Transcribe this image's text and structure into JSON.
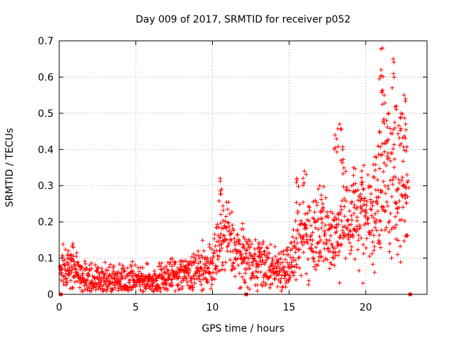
{
  "chart_data": {
    "type": "scatter",
    "title": "Day 009 of 2017, SRMTID for receiver p052",
    "xlabel": "GPS time / hours",
    "ylabel": "SRMTID / TECUs",
    "xlim": [
      0,
      24
    ],
    "ylim": [
      0,
      0.7
    ],
    "xticks": [
      0,
      5,
      10,
      15,
      20
    ],
    "xtick_labels": [
      "0",
      "5",
      "10",
      "15",
      "20"
    ],
    "yticks": [
      0,
      0.1,
      0.2,
      0.3,
      0.4,
      0.5,
      0.6,
      0.7
    ],
    "ytick_labels": [
      "0",
      "0.1",
      "0.2",
      "0.3",
      "0.4",
      "0.5",
      "0.6",
      "0.7"
    ],
    "grid": true,
    "marker": "plus",
    "series_color": "#ff0000",
    "trend": [
      [
        0.0,
        0.07
      ],
      [
        0.5,
        0.08
      ],
      [
        1.0,
        0.07
      ],
      [
        1.5,
        0.05
      ],
      [
        2.0,
        0.045
      ],
      [
        3.0,
        0.04
      ],
      [
        4.0,
        0.045
      ],
      [
        5.0,
        0.045
      ],
      [
        5.5,
        0.04
      ],
      [
        6.0,
        0.035
      ],
      [
        7.0,
        0.05
      ],
      [
        8.0,
        0.06
      ],
      [
        9.0,
        0.065
      ],
      [
        10.0,
        0.08
      ],
      [
        10.5,
        0.14
      ],
      [
        11.0,
        0.16
      ],
      [
        11.5,
        0.12
      ],
      [
        12.0,
        0.1
      ],
      [
        13.0,
        0.09
      ],
      [
        14.0,
        0.07
      ],
      [
        15.0,
        0.08
      ],
      [
        15.5,
        0.12
      ],
      [
        16.0,
        0.17
      ],
      [
        17.0,
        0.18
      ],
      [
        17.5,
        0.17
      ],
      [
        18.0,
        0.15
      ],
      [
        18.5,
        0.22
      ],
      [
        19.0,
        0.2
      ],
      [
        19.5,
        0.22
      ],
      [
        20.0,
        0.23
      ],
      [
        20.5,
        0.2
      ],
      [
        21.0,
        0.3
      ],
      [
        21.5,
        0.3
      ],
      [
        22.0,
        0.28
      ],
      [
        22.5,
        0.3
      ],
      [
        22.7,
        0.25
      ]
    ],
    "peaks": [
      [
        0.6,
        0.12
      ],
      [
        0.9,
        0.14
      ],
      [
        10.5,
        0.32
      ],
      [
        10.6,
        0.29
      ],
      [
        12.0,
        0.18
      ],
      [
        13.0,
        0.13
      ],
      [
        15.5,
        0.32
      ],
      [
        16.0,
        0.34
      ],
      [
        17.0,
        0.3
      ],
      [
        18.0,
        0.44
      ],
      [
        18.3,
        0.47
      ],
      [
        18.5,
        0.4
      ],
      [
        19.2,
        0.35
      ],
      [
        19.8,
        0.31
      ],
      [
        20.6,
        0.38
      ],
      [
        20.9,
        0.45
      ],
      [
        21.0,
        0.62
      ],
      [
        21.1,
        0.68
      ],
      [
        21.2,
        0.55
      ],
      [
        21.5,
        0.5
      ],
      [
        21.8,
        0.65
      ],
      [
        22.0,
        0.52
      ],
      [
        22.3,
        0.5
      ],
      [
        22.5,
        0.55
      ],
      [
        22.6,
        0.47
      ],
      [
        22.7,
        0.33
      ]
    ],
    "base_markers_x": [
      0.1,
      12.2,
      22.9
    ]
  }
}
